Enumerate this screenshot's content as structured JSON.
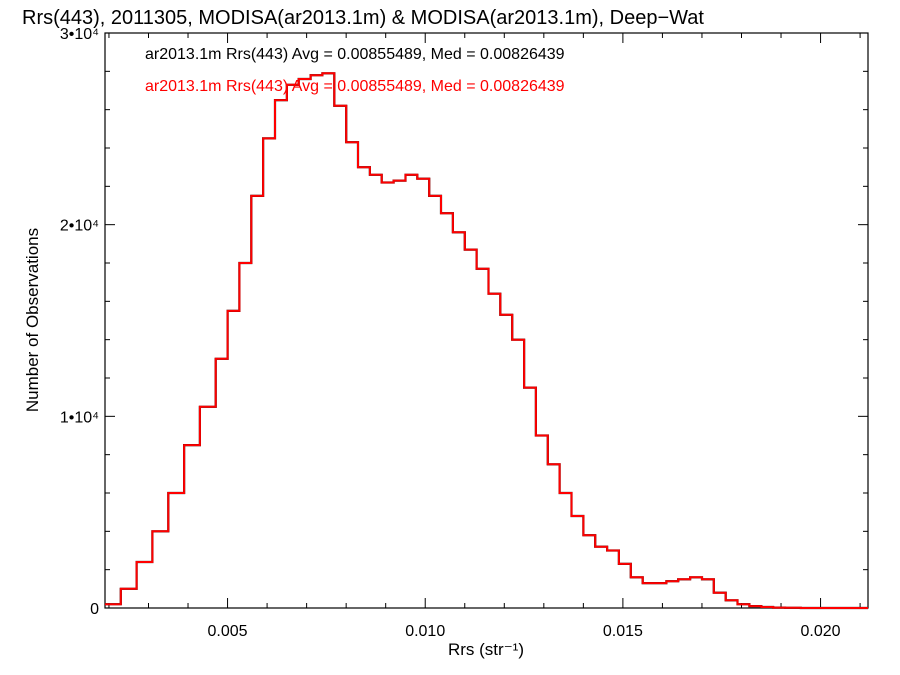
{
  "chart_data": {
    "type": "line",
    "title": "Rrs(443), 2011305, MODISA(ar2013.1m) & MODISA(ar2013.1m), Deep−Wat",
    "xlabel": "Rrs (str⁻¹)",
    "ylabel": "Number of Observations",
    "xlim": [
      0.0019,
      0.0212
    ],
    "ylim": [
      0,
      30000
    ],
    "xticks": [
      {
        "value": 0.005,
        "label": "0.005"
      },
      {
        "value": 0.01,
        "label": "0.010"
      },
      {
        "value": 0.015,
        "label": "0.015"
      },
      {
        "value": 0.02,
        "label": "0.020"
      }
    ],
    "yticks": [
      {
        "value": 0,
        "label": "0"
      },
      {
        "value": 10000,
        "label": "1•10⁴"
      },
      {
        "value": 20000,
        "label": "2•10⁴"
      },
      {
        "value": 30000,
        "label": "3•10⁴"
      }
    ],
    "legend": [
      {
        "text": "ar2013.1m Rrs(443) Avg = 0.00855489, Med = 0.00826439",
        "color": "#000000"
      },
      {
        "text": "ar2013.1m Rrs(443) Avg = 0.00855489, Med = 0.00826439",
        "color": "#ff0000"
      }
    ],
    "legend_placement": "top-left",
    "grid": false,
    "series": [
      {
        "color": "#000000",
        "x": [
          0.0019,
          0.0023,
          0.0027,
          0.0031,
          0.0035,
          0.0039,
          0.0043,
          0.0047,
          0.005,
          0.0053,
          0.0056,
          0.0059,
          0.0062,
          0.0065,
          0.0068,
          0.0071,
          0.0074,
          0.0077,
          0.008,
          0.0083,
          0.0086,
          0.0089,
          0.0092,
          0.0095,
          0.0098,
          0.0101,
          0.0104,
          0.0107,
          0.011,
          0.0113,
          0.0116,
          0.0119,
          0.0122,
          0.0125,
          0.0128,
          0.0131,
          0.0134,
          0.0137,
          0.014,
          0.0143,
          0.0146,
          0.0149,
          0.0152,
          0.0155,
          0.0158,
          0.0161,
          0.0164,
          0.0167,
          0.017,
          0.0173,
          0.0176,
          0.0179,
          0.0182,
          0.0185,
          0.0188,
          0.0191,
          0.0195,
          0.02,
          0.0206,
          0.0212
        ],
        "y": [
          200,
          1000,
          2400,
          4000,
          6000,
          8500,
          10500,
          13000,
          15500,
          18000,
          21500,
          24500,
          26500,
          27300,
          27600,
          27800,
          27900,
          26200,
          24300,
          23000,
          22600,
          22200,
          22300,
          22600,
          22400,
          21500,
          20600,
          19600,
          18700,
          17700,
          16400,
          15300,
          14000,
          11500,
          9000,
          7500,
          6000,
          4800,
          3800,
          3200,
          3000,
          2300,
          1600,
          1300,
          1300,
          1400,
          1500,
          1600,
          1500,
          800,
          400,
          200,
          100,
          50,
          20,
          10,
          0,
          0,
          0,
          0
        ]
      },
      {
        "color": "#ff0000",
        "x": [
          0.0019,
          0.0023,
          0.0027,
          0.0031,
          0.0035,
          0.0039,
          0.0043,
          0.0047,
          0.005,
          0.0053,
          0.0056,
          0.0059,
          0.0062,
          0.0065,
          0.0068,
          0.0071,
          0.0074,
          0.0077,
          0.008,
          0.0083,
          0.0086,
          0.0089,
          0.0092,
          0.0095,
          0.0098,
          0.0101,
          0.0104,
          0.0107,
          0.011,
          0.0113,
          0.0116,
          0.0119,
          0.0122,
          0.0125,
          0.0128,
          0.0131,
          0.0134,
          0.0137,
          0.014,
          0.0143,
          0.0146,
          0.0149,
          0.0152,
          0.0155,
          0.0158,
          0.0161,
          0.0164,
          0.0167,
          0.017,
          0.0173,
          0.0176,
          0.0179,
          0.0182,
          0.0185,
          0.0188,
          0.0191,
          0.0195,
          0.02,
          0.0206,
          0.0212
        ],
        "y": [
          200,
          1000,
          2400,
          4000,
          6000,
          8500,
          10500,
          13000,
          15500,
          18000,
          21500,
          24500,
          26500,
          27300,
          27600,
          27800,
          27900,
          26200,
          24300,
          23000,
          22600,
          22200,
          22300,
          22600,
          22400,
          21500,
          20600,
          19600,
          18700,
          17700,
          16400,
          15300,
          14000,
          11500,
          9000,
          7500,
          6000,
          4800,
          3800,
          3200,
          3000,
          2300,
          1600,
          1300,
          1300,
          1400,
          1500,
          1600,
          1500,
          800,
          400,
          200,
          100,
          50,
          20,
          10,
          0,
          0,
          0,
          0
        ]
      }
    ]
  }
}
